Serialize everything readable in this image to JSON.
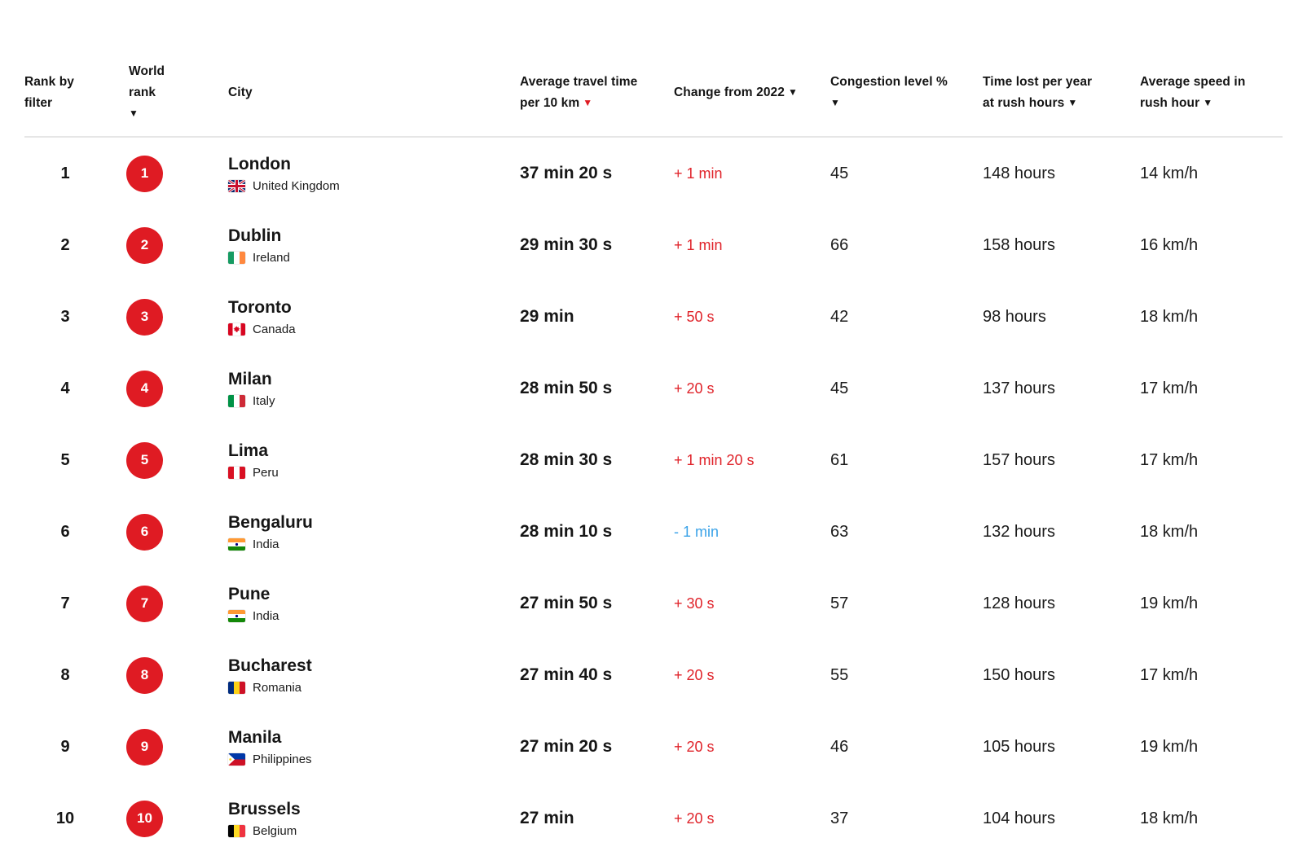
{
  "colors": {
    "accent_red": "#df1b23",
    "change_increase": "#e0242b",
    "change_decrease": "#3ba3e8",
    "separator": "#e6e6e6"
  },
  "table": {
    "headers": {
      "rank": {
        "l1": "Rank by",
        "l2": "filter"
      },
      "world_rank": {
        "l1": "World rank",
        "arrow": "▼"
      },
      "city": {
        "l1": "City"
      },
      "travel": {
        "l1": "Average travel time",
        "l2": "per 10 km",
        "arrow": "▼"
      },
      "change": {
        "l1": "Change from 2022",
        "arrow": "▼"
      },
      "congestion": {
        "l1": "Congestion level %",
        "arrow": "▼"
      },
      "time_lost": {
        "l1": "Time lost per year",
        "l2": "at rush hours",
        "arrow": "▼"
      },
      "speed": {
        "l1": "Average speed in",
        "l2": "rush hour",
        "arrow": "▼"
      }
    },
    "rows": [
      {
        "rank": "1",
        "world_rank": "1",
        "city": "London",
        "country": "United Kingdom",
        "flag": "uk",
        "travel_time": "37 min 20 s",
        "change": "+ 1 min",
        "change_direction": "up",
        "congestion": "45",
        "time_lost": "148 hours",
        "speed": "14 km/h"
      },
      {
        "rank": "2",
        "world_rank": "2",
        "city": "Dublin",
        "country": "Ireland",
        "flag": "ie",
        "travel_time": "29 min 30 s",
        "change": "+ 1 min",
        "change_direction": "up",
        "congestion": "66",
        "time_lost": "158 hours",
        "speed": "16 km/h"
      },
      {
        "rank": "3",
        "world_rank": "3",
        "city": "Toronto",
        "country": "Canada",
        "flag": "ca",
        "travel_time": "29 min",
        "change": "+ 50 s",
        "change_direction": "up",
        "congestion": "42",
        "time_lost": "98 hours",
        "speed": "18 km/h"
      },
      {
        "rank": "4",
        "world_rank": "4",
        "city": "Milan",
        "country": "Italy",
        "flag": "it",
        "travel_time": "28 min 50 s",
        "change": "+ 20 s",
        "change_direction": "up",
        "congestion": "45",
        "time_lost": "137 hours",
        "speed": "17 km/h"
      },
      {
        "rank": "5",
        "world_rank": "5",
        "city": "Lima",
        "country": "Peru",
        "flag": "pe",
        "travel_time": "28 min 30 s",
        "change": "+ 1 min 20 s",
        "change_direction": "up",
        "congestion": "61",
        "time_lost": "157 hours",
        "speed": "17 km/h"
      },
      {
        "rank": "6",
        "world_rank": "6",
        "city": "Bengaluru",
        "country": "India",
        "flag": "in",
        "travel_time": "28 min 10 s",
        "change": "- 1 min",
        "change_direction": "down",
        "congestion": "63",
        "time_lost": "132 hours",
        "speed": "18 km/h"
      },
      {
        "rank": "7",
        "world_rank": "7",
        "city": "Pune",
        "country": "India",
        "flag": "in",
        "travel_time": "27 min 50 s",
        "change": "+ 30 s",
        "change_direction": "up",
        "congestion": "57",
        "time_lost": "128 hours",
        "speed": "19 km/h"
      },
      {
        "rank": "8",
        "world_rank": "8",
        "city": "Bucharest",
        "country": "Romania",
        "flag": "ro",
        "travel_time": "27 min 40 s",
        "change": "+ 20 s",
        "change_direction": "up",
        "congestion": "55",
        "time_lost": "150 hours",
        "speed": "17 km/h"
      },
      {
        "rank": "9",
        "world_rank": "9",
        "city": "Manila",
        "country": "Philippines",
        "flag": "ph",
        "travel_time": "27 min 20 s",
        "change": "+ 20 s",
        "change_direction": "up",
        "congestion": "46",
        "time_lost": "105 hours",
        "speed": "19 km/h"
      },
      {
        "rank": "10",
        "world_rank": "10",
        "city": "Brussels",
        "country": "Belgium",
        "flag": "be",
        "travel_time": "27 min",
        "change": "+ 20 s",
        "change_direction": "up",
        "congestion": "37",
        "time_lost": "104 hours",
        "speed": "18 km/h"
      }
    ]
  }
}
